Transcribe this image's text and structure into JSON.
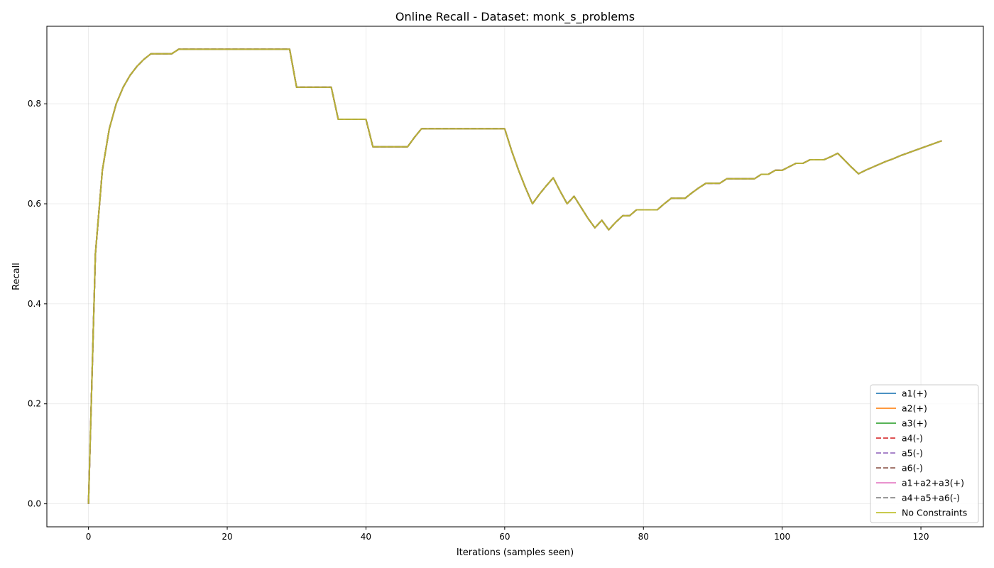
{
  "chart_data": {
    "type": "line",
    "title": "Online Recall - Dataset: monk_s_problems",
    "xlabel": "Iterations (samples seen)",
    "ylabel": "Recall",
    "xlim": [
      -6,
      129
    ],
    "ylim": [
      -0.046,
      0.955
    ],
    "xticks": [
      0,
      20,
      40,
      60,
      80,
      100,
      120
    ],
    "yticks": [
      0.0,
      0.2,
      0.4,
      0.6,
      0.8
    ],
    "ytick_labels": [
      "0.0",
      "0.2",
      "0.4",
      "0.6",
      "0.8"
    ],
    "grid": true,
    "legend_position": "lower-right",
    "x": [
      0,
      1,
      2,
      3,
      4,
      5,
      6,
      7,
      8,
      9,
      10,
      11,
      12,
      13,
      14,
      15,
      16,
      17,
      18,
      19,
      20,
      21,
      22,
      23,
      24,
      25,
      26,
      27,
      28,
      29,
      30,
      31,
      32,
      33,
      34,
      35,
      36,
      37,
      38,
      39,
      40,
      41,
      42,
      43,
      44,
      45,
      46,
      47,
      48,
      49,
      50,
      51,
      52,
      53,
      54,
      55,
      56,
      57,
      58,
      59,
      60,
      61,
      62,
      63,
      64,
      65,
      66,
      67,
      68,
      69,
      70,
      71,
      72,
      73,
      74,
      75,
      76,
      77,
      78,
      79,
      80,
      81,
      82,
      83,
      84,
      85,
      86,
      87,
      88,
      89,
      90,
      91,
      92,
      93,
      94,
      95,
      96,
      97,
      98,
      99,
      100,
      101,
      102,
      103,
      104,
      105,
      106,
      107,
      108,
      109,
      110,
      111,
      112,
      113,
      114,
      115,
      116,
      117,
      118,
      119,
      120,
      121,
      122,
      123
    ],
    "recall": [
      0.0,
      0.5,
      0.667,
      0.75,
      0.8,
      0.833,
      0.857,
      0.875,
      0.889,
      0.9,
      0.9,
      0.9,
      0.9,
      0.909,
      0.909,
      0.909,
      0.909,
      0.909,
      0.909,
      0.909,
      0.909,
      0.909,
      0.909,
      0.909,
      0.909,
      0.909,
      0.909,
      0.909,
      0.909,
      0.909,
      0.833,
      0.833,
      0.833,
      0.833,
      0.833,
      0.833,
      0.769,
      0.769,
      0.769,
      0.769,
      0.769,
      0.714,
      0.714,
      0.714,
      0.714,
      0.714,
      0.714,
      0.733,
      0.75,
      0.75,
      0.75,
      0.75,
      0.75,
      0.75,
      0.75,
      0.75,
      0.75,
      0.75,
      0.75,
      0.75,
      0.75,
      0.706,
      0.667,
      0.632,
      0.6,
      0.619,
      0.636,
      0.652,
      0.625,
      0.6,
      0.615,
      0.593,
      0.571,
      0.552,
      0.567,
      0.548,
      0.563,
      0.576,
      0.576,
      0.588,
      0.588,
      0.588,
      0.588,
      0.6,
      0.611,
      0.611,
      0.611,
      0.622,
      0.632,
      0.641,
      0.641,
      0.641,
      0.65,
      0.65,
      0.65,
      0.65,
      0.65,
      0.659,
      0.659,
      0.667,
      0.667,
      0.674,
      0.681,
      0.681,
      0.688,
      0.688,
      0.688,
      0.694,
      0.701,
      0.687,
      0.673,
      0.66,
      0.667,
      0.673,
      0.679,
      0.685,
      0.69,
      0.696,
      0.701,
      0.706,
      0.711,
      0.716,
      0.721,
      0.726
    ],
    "series": [
      {
        "name": "a1(+)",
        "color": "#1f77b4",
        "dash": "solid"
      },
      {
        "name": "a2(+)",
        "color": "#ff7f0e",
        "dash": "solid"
      },
      {
        "name": "a3(+)",
        "color": "#2ca02c",
        "dash": "solid"
      },
      {
        "name": "a4(-)",
        "color": "#d62728",
        "dash": "dashed"
      },
      {
        "name": "a5(-)",
        "color": "#9467bd",
        "dash": "dashed"
      },
      {
        "name": "a6(-)",
        "color": "#8c564b",
        "dash": "dashed"
      },
      {
        "name": "a1+a2+a3(+)",
        "color": "#e377c2",
        "dash": "solid"
      },
      {
        "name": "a4+a5+a6(-)",
        "color": "#7f7f7f",
        "dash": "dashed"
      },
      {
        "name": "No Constraints",
        "color": "#bcbd22",
        "dash": "solid"
      }
    ]
  }
}
